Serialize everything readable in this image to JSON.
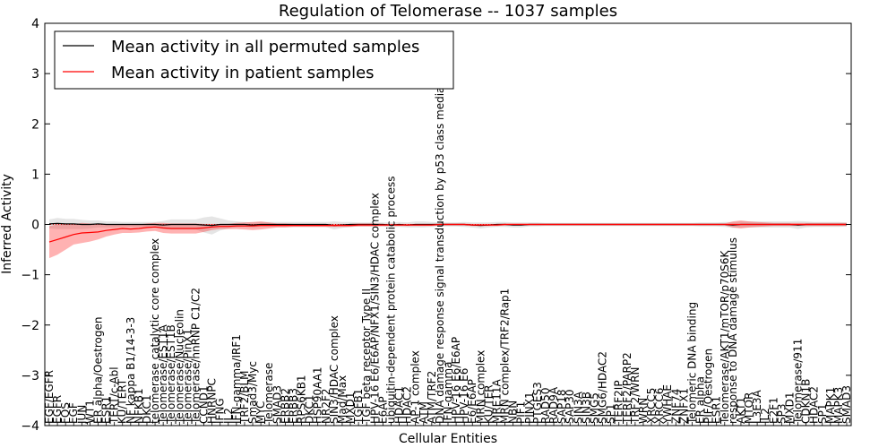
{
  "chart_data": {
    "type": "line",
    "title": "Regulation of Telomerase -- 1037 samples",
    "xlabel": "Cellular Entities",
    "ylabel": "Inferred Activity",
    "ylim": [
      -4,
      4
    ],
    "yticks": [
      -4,
      -3,
      -2,
      -1,
      0,
      1,
      2,
      3,
      4
    ],
    "grid": false,
    "legend_position": "top-left",
    "colors": {
      "permuted": "#000000",
      "patient": "#ff0000",
      "permuted_band": "#aaaaaa",
      "patient_band": "#ff0000",
      "reference": "#ff0000"
    },
    "categories": [
      "EGF/EGFR",
      "EGFR",
      "FOS",
      "EGF",
      "JUN",
      "WT1",
      "ER alpha/Oestrogen",
      "ESR1",
      "TERT/c-Abl",
      "KU/TERT",
      "NF kappa B1/14-3-3",
      "NFKB1",
      "DKC1",
      "telomerase catalytic core complex",
      "Telomerase/EST1A",
      "Telomerase/EST1B",
      "Telomerase/Nucleolin",
      "Telomerase/PinX1",
      "Telomerase/hnRNP C1/C2",
      "CCND1",
      "HNRNPC",
      "IFNG",
      "IL2",
      "IFN-gamma/IRF1",
      "TRF2/BLM",
      "Smad3/Myc",
      "MYC",
      "Telomerase",
      "SMAD3",
      "ERBB2",
      "ERBB3",
      "RPS6KB1",
      "DKC1",
      "HSP90AA1",
      "NR2F2",
      "SIN3/HDAC complex",
      "Mad/Max",
      "MXD1",
      "TGFB1",
      "TGF beta receptor Type II",
      "HPV-16 E6/E6AP/NFX1/SIN3/HDAC complex",
      "E6AP",
      "ubiquitin-dependent protein catabolic process",
      "HDAC1",
      "HDAC2",
      "AP-1 complex",
      "ATM",
      "ATM/TRF2",
      "DNA damage response signal transduction by p53 class mediator",
      "IFN-gamma",
      "HPV-16 E6/E6AP",
      "HPV-16 E6",
      "E6/E6AP",
      "MRN complex",
      "KU/TER",
      "MRE11A",
      "MRN complex/TRF2/Rap1",
      "NBN",
      "PIF1",
      "PINX1",
      "PTGES3",
      "RAD50",
      "RAD9A",
      "SAP18",
      "SAP30",
      "SIN3A",
      "SIN3B",
      "SMG5",
      "SMG6/HDAC2",
      "SP1",
      "TERF2IP",
      "TERF2/PARP2",
      "TRF2/WRN",
      "WRN",
      "XRCC5",
      "XRCC6",
      "YWHAE",
      "ZNF74",
      "ZNFX1",
      "Telomeric DNA binding",
      "ER alpha",
      "PIF/Oestrogen",
      "ESR1",
      "Telomerase/AKT1/mTOR/p70S6K",
      "response to DNA damage stimulus",
      "AKT1",
      "MTOR",
      "L3E3A",
      "IL2",
      "E2F1",
      "SP3",
      "MXD1",
      "Telomerase/911",
      "CDKN1B",
      "HDAC2",
      "SP1",
      "MAPK1",
      "MAPK3",
      "SMAD3"
    ],
    "series": [
      {
        "name": "Mean activity in all permuted samples",
        "values": [
          0.01,
          0.02,
          0.01,
          0.01,
          0,
          0,
          0.01,
          0,
          0,
          0,
          0,
          0,
          0,
          0,
          -0.01,
          0,
          0,
          0,
          0,
          -0.01,
          -0.02,
          0,
          0,
          0,
          0,
          -0.01,
          0,
          0,
          0,
          0,
          0,
          0,
          0,
          0,
          0,
          -0.02,
          -0.01,
          0,
          0,
          0,
          0,
          0,
          -0.01,
          0,
          -0.01,
          0,
          0,
          0,
          0,
          0,
          0,
          0,
          -0.01,
          -0.02,
          -0.01,
          0,
          0,
          -0.01,
          -0.01,
          0,
          0,
          0,
          0,
          0,
          0,
          0,
          0,
          0,
          0,
          0,
          0,
          0,
          0,
          0,
          0,
          0,
          0,
          0,
          0,
          0,
          0,
          0,
          0,
          0,
          -0.01,
          0,
          0,
          0,
          0,
          0,
          0,
          0,
          -0.01,
          0,
          0,
          0,
          0,
          0,
          0
        ],
        "band": [
          0.09,
          0.11,
          0.1,
          0.1,
          0.09,
          0.08,
          0.07,
          0.06,
          0.06,
          0.05,
          0.05,
          0.05,
          0.05,
          0.05,
          0.08,
          0.1,
          0.1,
          0.1,
          0.1,
          0.15,
          0.18,
          0.12,
          0.08,
          0.06,
          0.05,
          0.05,
          0.05,
          0.05,
          0.05,
          0.05,
          0.05,
          0.05,
          0.05,
          0.05,
          0.05,
          0.08,
          0.06,
          0.05,
          0.04,
          0.04,
          0.04,
          0.04,
          0.05,
          0.05,
          0.05,
          0.06,
          0.06,
          0.05,
          0.04,
          0.04,
          0.04,
          0.05,
          0.05,
          0.06,
          0.05,
          0.05,
          0.05,
          0.05,
          0.05,
          0.04,
          0.04,
          0.03,
          0.03,
          0.03,
          0.03,
          0.03,
          0.03,
          0.03,
          0.03,
          0.03,
          0.03,
          0.03,
          0.03,
          0.03,
          0.03,
          0.03,
          0.03,
          0.03,
          0.03,
          0.03,
          0.04,
          0.04,
          0.04,
          0.05,
          0.06,
          0.06,
          0.06,
          0.06,
          0.06,
          0.06,
          0.06,
          0.06,
          0.08,
          0.06,
          0.05,
          0.05,
          0.05,
          0.05,
          0.04
        ]
      },
      {
        "name": "Mean activity in patient samples",
        "values": [
          -0.35,
          -0.3,
          -0.25,
          -0.2,
          -0.17,
          -0.16,
          -0.15,
          -0.12,
          -0.1,
          -0.08,
          -0.09,
          -0.08,
          -0.06,
          -0.05,
          -0.07,
          -0.08,
          -0.08,
          -0.08,
          -0.08,
          -0.07,
          -0.05,
          -0.04,
          -0.04,
          -0.03,
          -0.03,
          -0.03,
          -0.02,
          -0.02,
          -0.02,
          -0.02,
          -0.02,
          -0.02,
          -0.02,
          -0.02,
          -0.02,
          -0.02,
          -0.02,
          -0.02,
          -0.01,
          -0.01,
          -0.01,
          -0.01,
          -0.01,
          -0.01,
          -0.01,
          -0.01,
          -0.01,
          -0.01,
          0,
          0,
          0,
          0,
          -0.01,
          -0.01,
          -0.01,
          -0.01,
          0,
          0,
          0,
          0,
          0,
          0,
          0,
          0,
          0,
          0,
          0,
          0,
          0,
          0,
          0,
          0,
          0,
          0,
          0,
          0,
          0,
          0,
          0,
          0,
          0,
          0,
          0,
          0,
          0,
          0,
          0,
          0,
          0,
          0,
          0,
          0,
          0,
          0,
          0,
          0,
          0,
          0,
          0
        ],
        "band": [
          0.32,
          0.3,
          0.25,
          0.2,
          0.2,
          0.18,
          0.15,
          0.12,
          0.1,
          0.09,
          0.08,
          0.08,
          0.08,
          0.08,
          0.1,
          0.1,
          0.1,
          0.1,
          0.1,
          0.08,
          0.06,
          0.05,
          0.05,
          0.06,
          0.07,
          0.08,
          0.08,
          0.06,
          0.04,
          0.04,
          0.03,
          0.03,
          0.03,
          0.03,
          0.03,
          0.03,
          0.03,
          0.03,
          0.03,
          0.03,
          0.03,
          0.02,
          0.02,
          0.02,
          0.02,
          0.02,
          0.02,
          0.02,
          0.02,
          0.02,
          0.02,
          0.02,
          0.02,
          0.02,
          0.02,
          0.02,
          0.02,
          0.02,
          0.02,
          0.02,
          0.02,
          0.02,
          0.02,
          0.02,
          0.02,
          0.02,
          0.02,
          0.02,
          0.02,
          0.02,
          0.02,
          0.02,
          0.02,
          0.02,
          0.02,
          0.02,
          0.02,
          0.02,
          0.02,
          0.02,
          0.02,
          0.02,
          0.02,
          0.02,
          0.06,
          0.08,
          0.06,
          0.05,
          0.04,
          0.03,
          0.03,
          0.03,
          0.03,
          0.03,
          0.03,
          0.03,
          0.03,
          0.03,
          0.03
        ]
      }
    ],
    "reference_line": 0
  }
}
